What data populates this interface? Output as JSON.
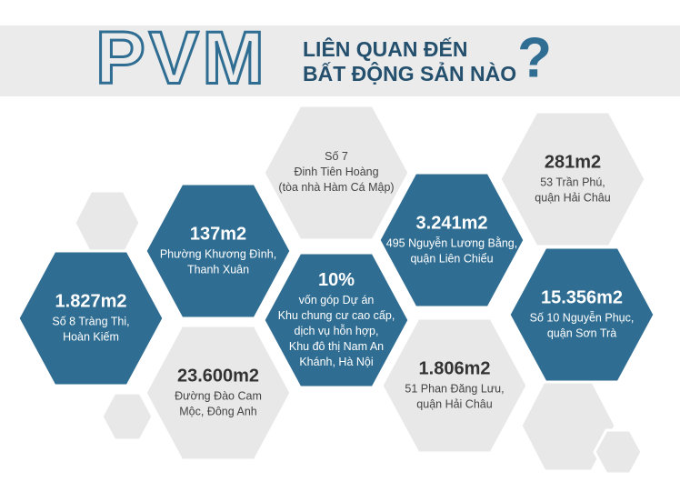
{
  "header": {
    "title": "PVM",
    "subtitle": [
      "LIÊN QUAN ĐẾN",
      "BẤT ĐỘNG SẢN NÀO"
    ],
    "mark": "?"
  },
  "hexagons": [
    {
      "value": "137m2",
      "lines": [
        "Phường Khương Đình,",
        "Thanh Xuân"
      ]
    },
    {
      "lines": [
        "Số 7",
        "Đinh Tiên Hoàng",
        "(tòa nhà Hàm Cá Mập)"
      ]
    },
    {
      "value": "3.241m2",
      "lines": [
        "495 Nguyễn Lương Bằng,",
        "quận Liên Chiểu"
      ]
    },
    {
      "value": "281m2",
      "lines": [
        "53 Trần Phú,",
        "quận Hải Châu"
      ]
    },
    {
      "value": "1.827m2",
      "lines": [
        "Số 8 Tràng Thi,",
        "Hoàn Kiếm"
      ]
    },
    {
      "value": "10%",
      "lines": [
        "vốn góp Dự án",
        "Khu chung cư cao cấp,",
        "dịch vụ hỗn hợp,",
        "Khu đô thị Nam An",
        "Khánh, Hà Nội"
      ]
    },
    {
      "value": "15.356m2",
      "lines": [
        "Số 10 Nguyễn Phục,",
        "quận Sơn Trà"
      ]
    },
    {
      "value": "23.600m2",
      "lines": [
        "Đường Đào Cam",
        "Mộc, Đông Anh"
      ]
    },
    {
      "value": "1.806m2",
      "lines": [
        "51 Phan Đăng Lưu,",
        "quận Hải Châu"
      ]
    }
  ]
}
